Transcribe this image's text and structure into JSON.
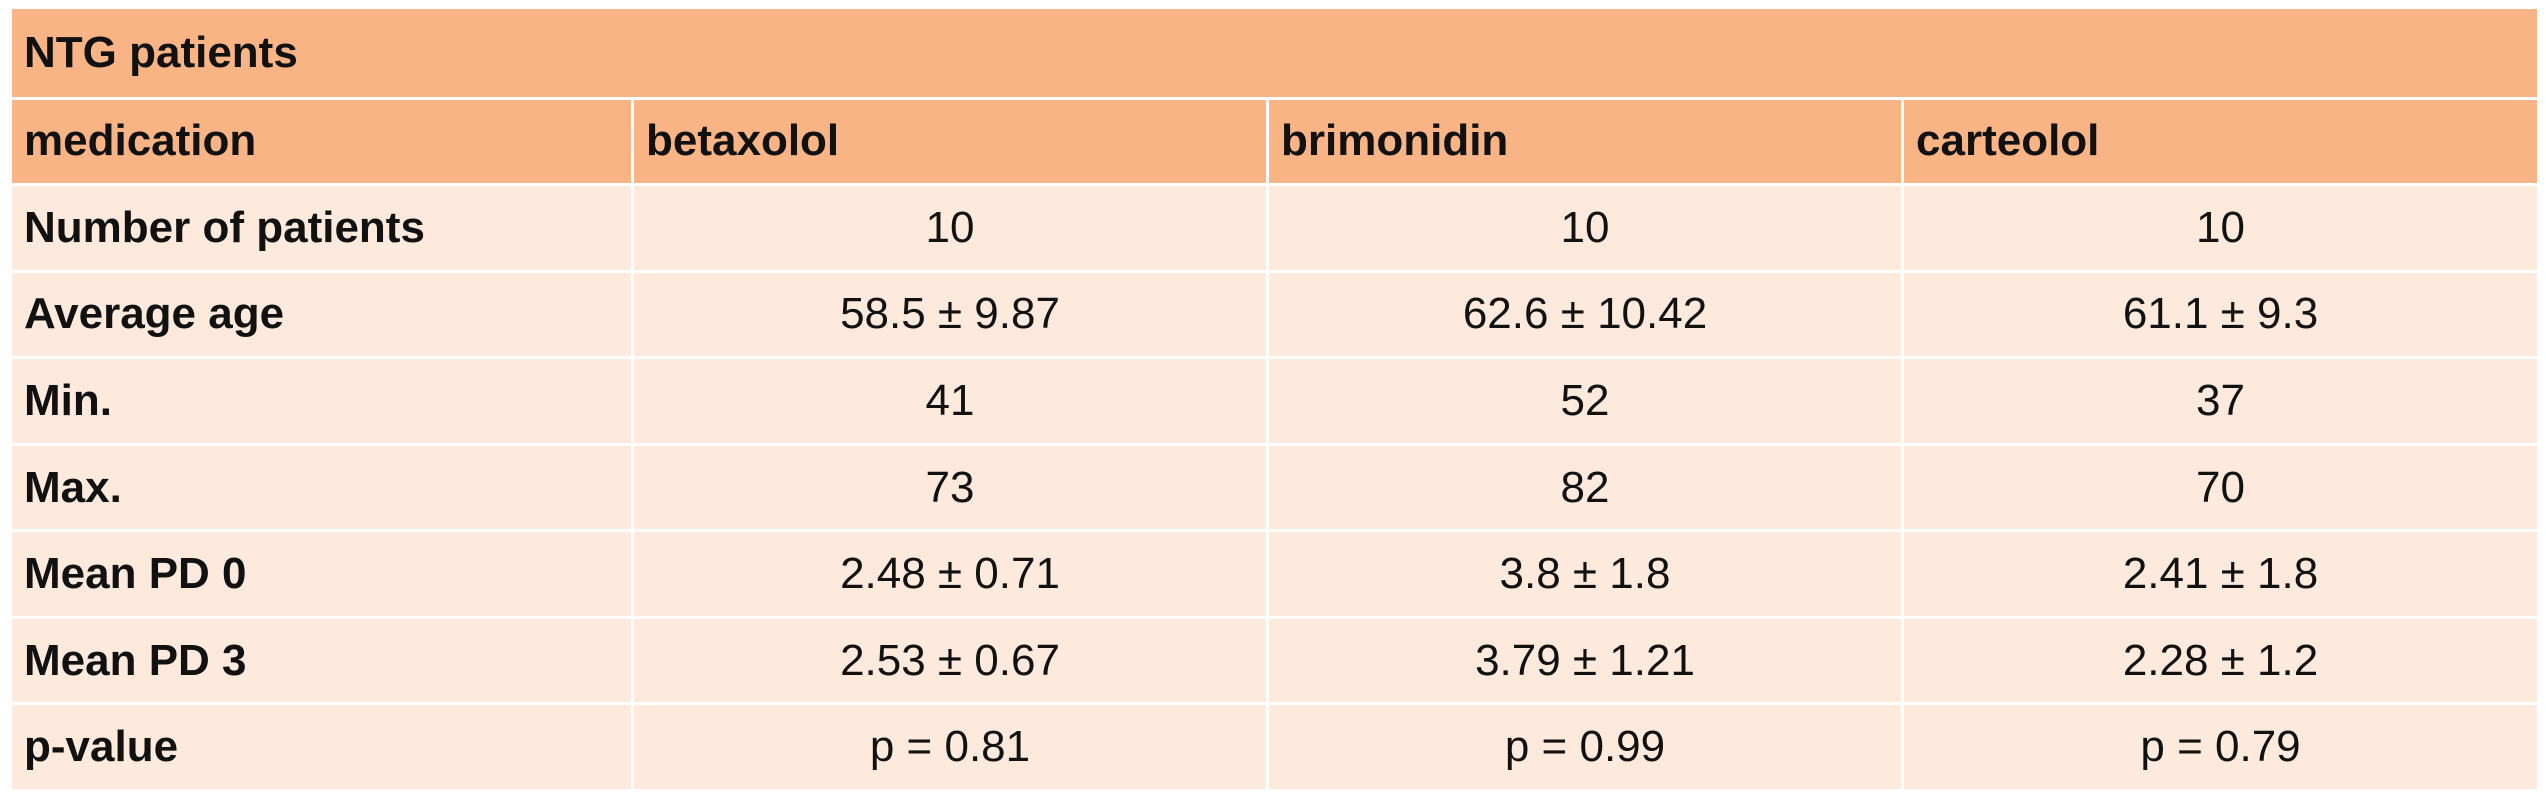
{
  "table": {
    "title": "NTG patients",
    "header": {
      "label": "medication",
      "columns": [
        "betaxolol",
        "brimonidin",
        "carteolol"
      ]
    },
    "rows": [
      {
        "label": "Number of patients",
        "values": [
          "10",
          "10",
          "10"
        ]
      },
      {
        "label": "Average age",
        "values": [
          "58.5 ± 9.87",
          "62.6 ± 10.42",
          "61.1 ± 9.3"
        ]
      },
      {
        "label": "Min.",
        "values": [
          "41",
          "52",
          "37"
        ]
      },
      {
        "label": "Max.",
        "values": [
          "73",
          "82",
          "70"
        ]
      },
      {
        "label": "Mean PD 0",
        "values": [
          "2.48 ± 0.71",
          "3.8 ± 1.8",
          "2.41 ± 1.8"
        ]
      },
      {
        "label": "Mean PD 3",
        "values": [
          "2.53 ± 0.67",
          "3.79 ± 1.21",
          "2.28 ± 1.2"
        ]
      },
      {
        "label": "p-value",
        "values": [
          "p = 0.81",
          "p = 0.99",
          "p = 0.79"
        ]
      }
    ]
  },
  "colors": {
    "header_bg": "#f9b486",
    "row_bg": "#fdeadc",
    "border": "#ffffff"
  }
}
